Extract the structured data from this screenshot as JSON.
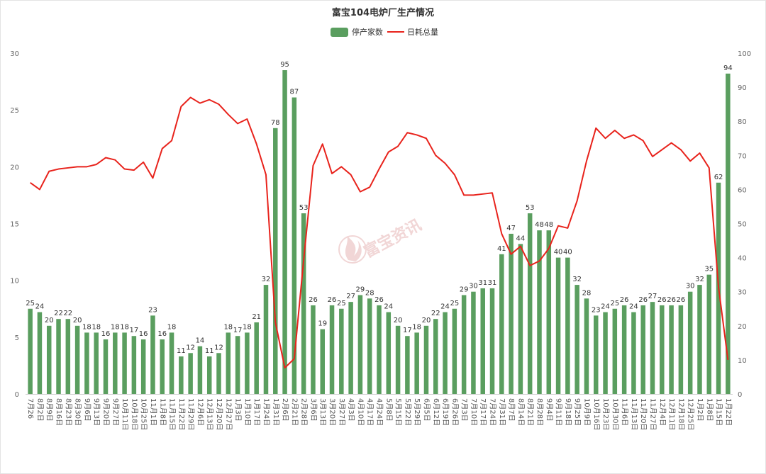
{
  "chart_data": {
    "type": "bar",
    "title": "富宝104电炉厂生产情况",
    "legend_position": "top-center",
    "grid": false,
    "categories": [
      "7月26",
      "8月2日",
      "8月9日",
      "8月16日",
      "8月23日",
      "8月30日",
      "9月6日",
      "9月13日",
      "9月20日",
      "9月27日",
      "10月11日",
      "10月18日",
      "10月25日",
      "11月1日",
      "11月8日",
      "11月15日",
      "11月22日",
      "11月29日",
      "12月6日",
      "12月13日",
      "12月20日",
      "12月27日",
      "1月3日",
      "1月10日",
      "1月17日",
      "1月24日",
      "1月31日",
      "2月6日",
      "2月21日",
      "2月28日",
      "3月6日",
      "3月13日",
      "3月20日",
      "3月27日",
      "4月3日",
      "4月10日",
      "4月17日",
      "4月24日",
      "5月8日",
      "5月15日",
      "5月22日",
      "5月29日",
      "6月5日",
      "6月12日",
      "6月19日",
      "6月26日",
      "7月3日",
      "7月10日",
      "7月17日",
      "7月24日",
      "7月31日",
      "8月7日",
      "8月14日",
      "8月21日",
      "8月28日",
      "9月4日",
      "9月11日",
      "9月18日",
      "9月25日",
      "10月9日",
      "10月16日",
      "10月23日",
      "10月30日",
      "11月6日",
      "11月13日",
      "11月20日",
      "11月27日",
      "12月4日",
      "12月11日",
      "12月18日",
      "12月25日",
      "1月2日",
      "1月8日",
      "1月15日",
      "1月22日"
    ],
    "series": [
      {
        "name": "停产家数",
        "type": "bar",
        "y_axis": "right",
        "color": "#5a9e5f",
        "show_data_labels": true,
        "values": [
          25,
          24,
          20,
          22,
          22,
          20,
          18,
          18,
          16,
          18,
          18,
          17,
          16,
          23,
          16,
          18,
          11,
          12,
          14,
          11,
          12,
          18,
          17,
          18,
          21,
          32,
          78,
          95,
          87,
          53,
          26,
          19,
          26,
          25,
          27,
          29,
          28,
          26,
          24,
          20,
          17,
          18,
          20,
          22,
          24,
          25,
          29,
          30,
          31,
          31,
          41,
          47,
          44,
          53,
          48,
          48,
          40,
          40,
          32,
          28,
          23,
          24,
          25,
          26,
          24,
          26,
          27,
          26,
          26,
          26,
          30,
          32,
          35,
          62,
          94
        ]
      },
      {
        "name": "日耗总量",
        "type": "line",
        "y_axis": "left",
        "color": "#e8231c",
        "values": [
          18.6,
          18.0,
          19.6,
          19.8,
          19.9,
          20.0,
          20.0,
          20.2,
          20.8,
          20.6,
          19.8,
          19.7,
          20.4,
          19.0,
          21.6,
          22.3,
          25.3,
          26.1,
          25.6,
          25.9,
          25.5,
          24.6,
          23.8,
          24.2,
          22.0,
          19.3,
          6.3,
          2.3,
          3.1,
          11.8,
          20.1,
          22.0,
          19.4,
          20.0,
          19.3,
          17.8,
          18.2,
          19.8,
          21.3,
          21.8,
          23.0,
          22.8,
          22.5,
          21.0,
          20.3,
          19.3,
          17.5,
          17.5,
          17.6,
          17.7,
          14.1,
          12.3,
          13.0,
          11.3,
          11.7,
          12.8,
          14.8,
          14.6,
          17.0,
          20.5,
          23.4,
          22.5,
          23.2,
          22.5,
          22.8,
          22.3,
          20.9,
          21.5,
          22.1,
          21.5,
          20.5,
          21.2,
          19.9,
          9.4,
          3.0
        ]
      }
    ],
    "y_left": {
      "min": 0,
      "max": 30,
      "ticks": [
        0,
        5,
        10,
        15,
        20,
        25,
        30
      ]
    },
    "y_right": {
      "min": 0,
      "max": 100,
      "ticks": [
        0,
        10,
        20,
        30,
        40,
        50,
        60,
        70,
        80,
        90,
        100
      ]
    }
  },
  "watermark": {
    "text": "富宝资讯",
    "color": "#d98c8c"
  }
}
